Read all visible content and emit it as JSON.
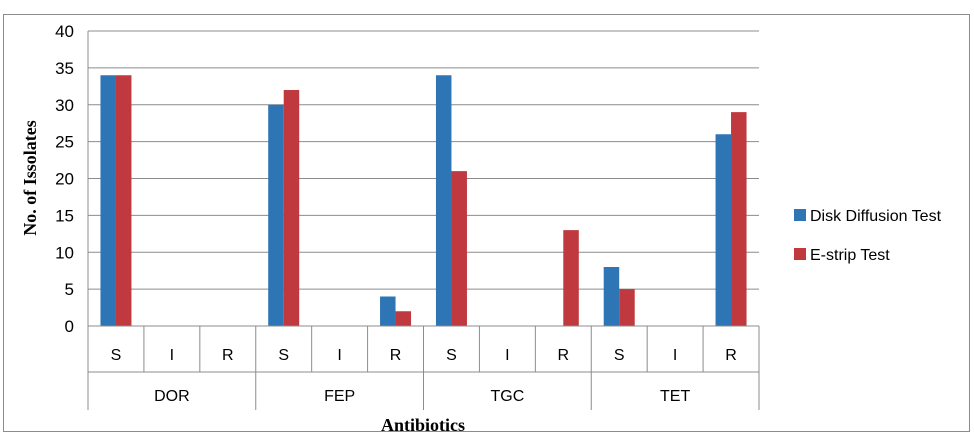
{
  "chart_data": {
    "type": "bar",
    "ylabel": "No. of Issolates",
    "xlabel": "Antibiotics",
    "ylim": [
      0,
      40
    ],
    "yticks": [
      0,
      5,
      10,
      15,
      20,
      25,
      30,
      35,
      40
    ],
    "grid": true,
    "legend_position": "right",
    "groups": [
      "DOR",
      "FEP",
      "TGC",
      "TET"
    ],
    "categories": [
      "S",
      "I",
      "R",
      "S",
      "I",
      "R",
      "S",
      "I",
      "R",
      "S",
      "I",
      "R"
    ],
    "series": [
      {
        "name": "Disk Diffusion Test",
        "color": "#2E75B6",
        "values": [
          34,
          0,
          0,
          30,
          0,
          4,
          34,
          0,
          0,
          8,
          0,
          26
        ]
      },
      {
        "name": "E-strip Test",
        "color": "#C0393F",
        "values": [
          34,
          0,
          0,
          32,
          0,
          2,
          21,
          0,
          13,
          5,
          0,
          29
        ]
      }
    ]
  }
}
